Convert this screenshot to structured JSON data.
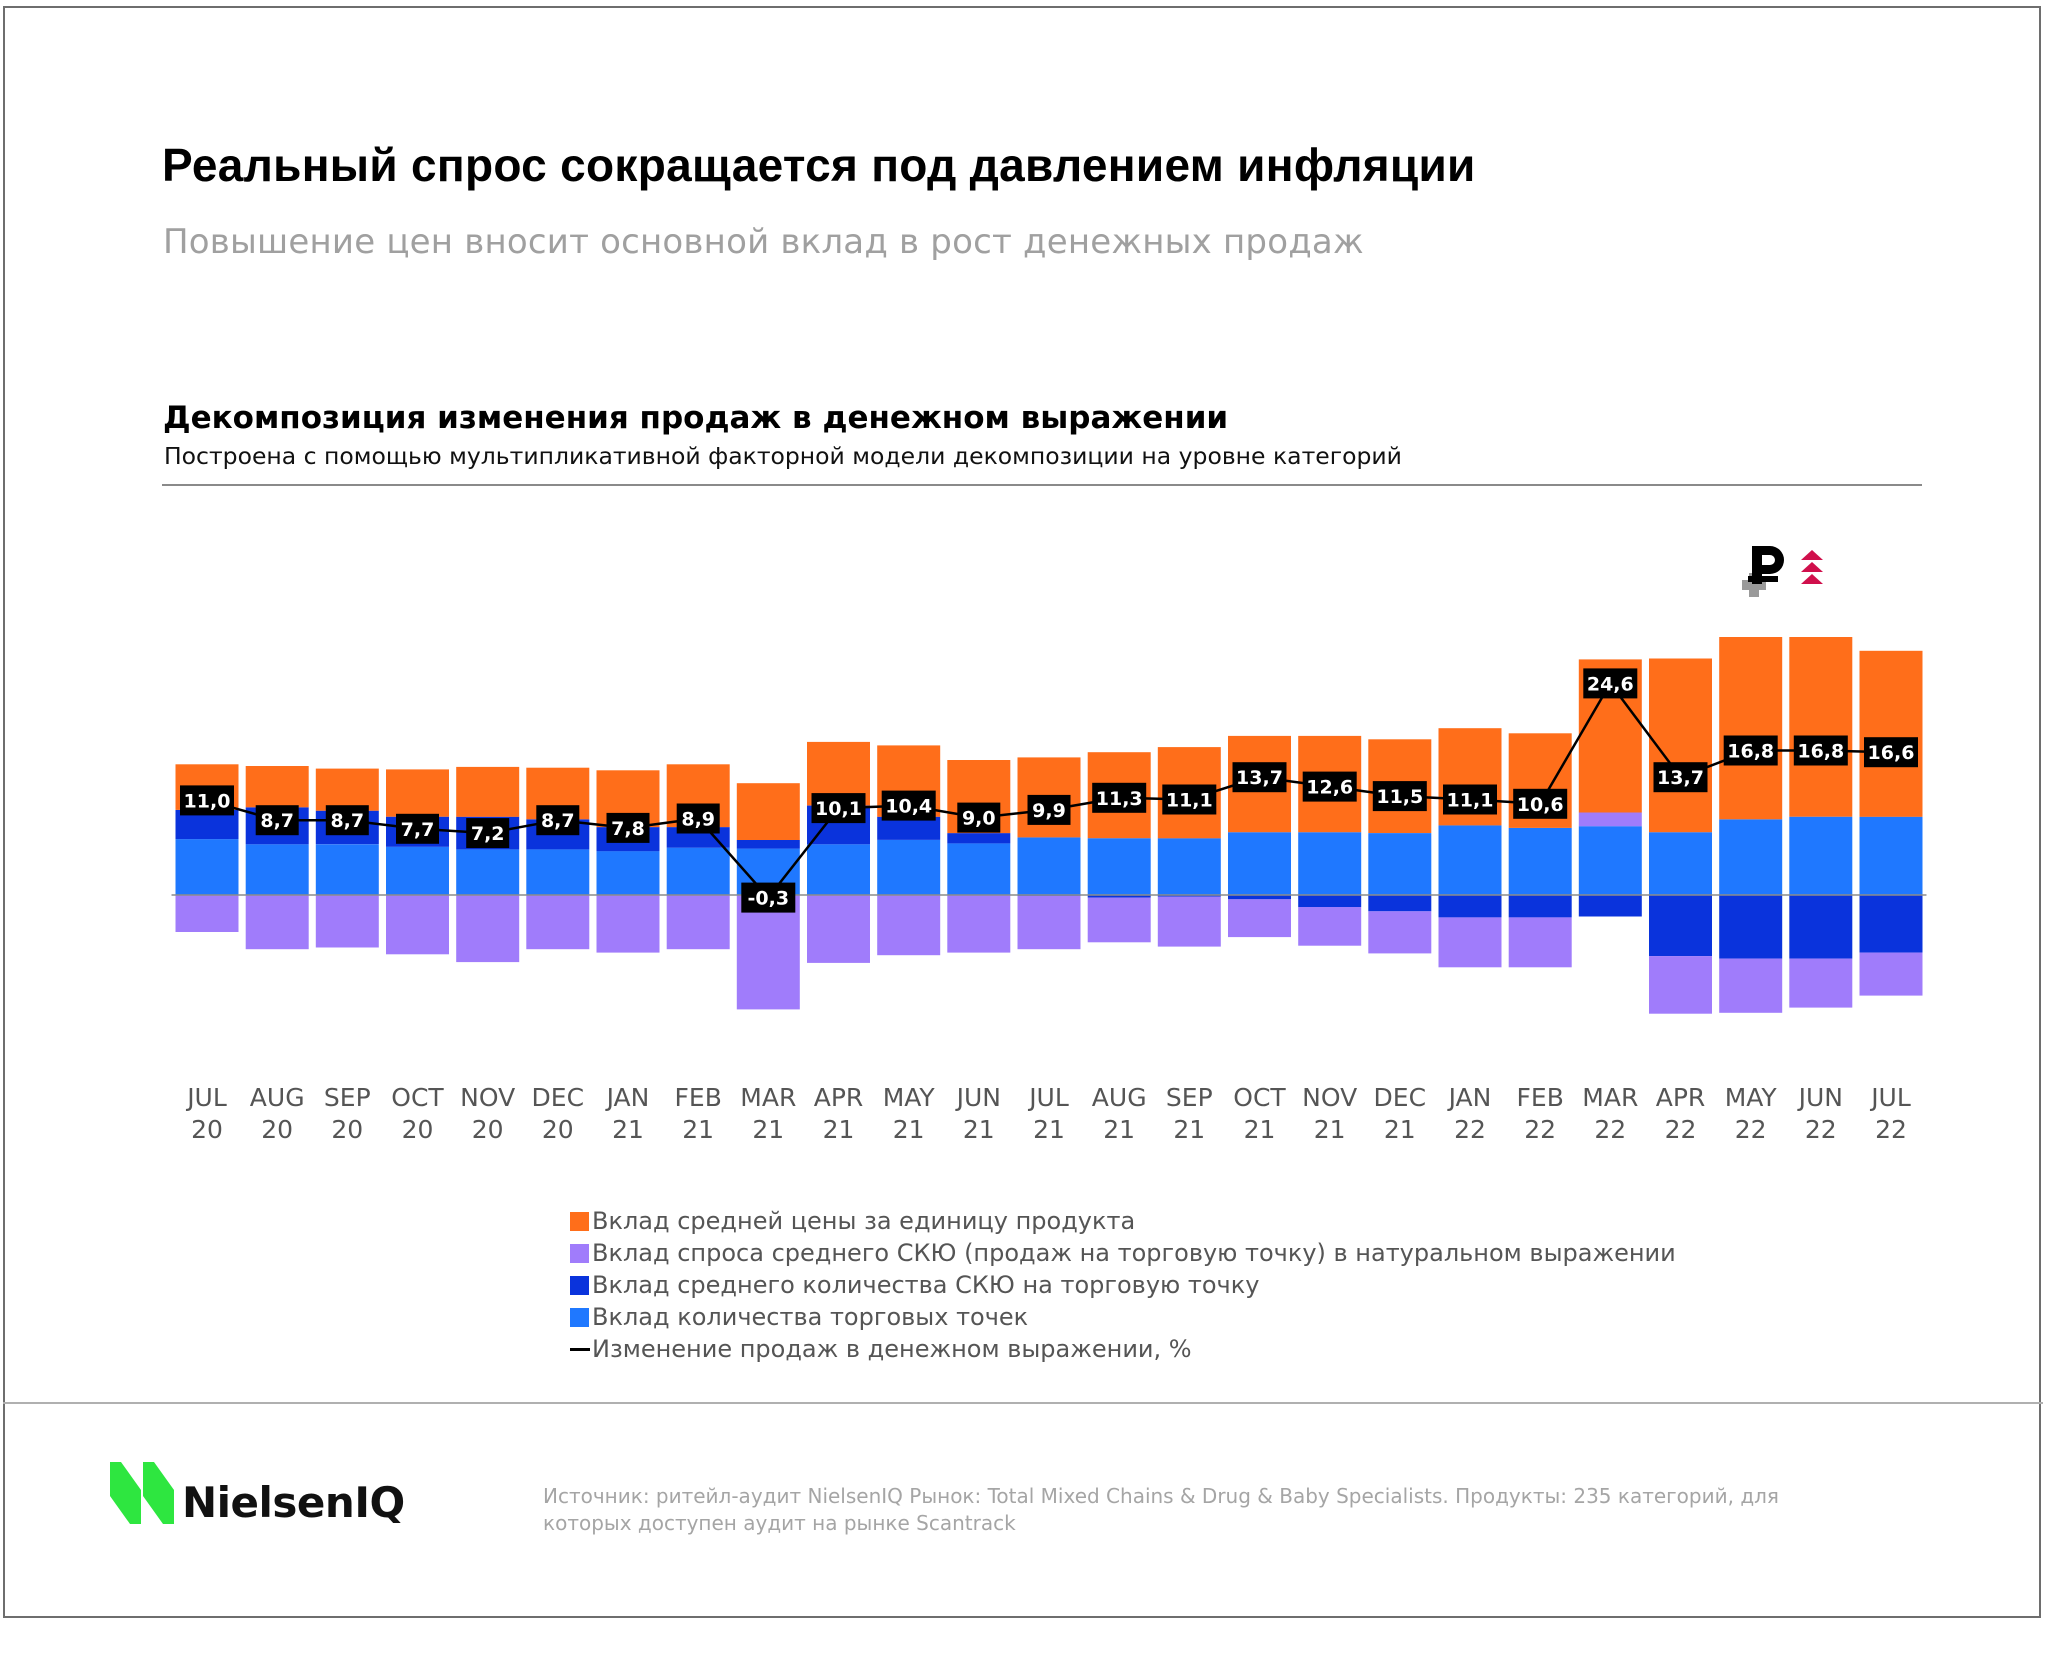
{
  "header": {
    "title": "Реальный спрос сокращается под давлением инфляции",
    "subtitle": "Повышение цен вносит основной вклад в рост денежных продаж"
  },
  "chart_header": {
    "title": "Декомпозиция изменения продаж в денежном выражении",
    "subtitle": "Построена с помощью мультипликативной факторной модели декомпозиции на уровне категорий"
  },
  "icons": {
    "ruble": "ruble-growth-icon"
  },
  "colors": {
    "price": "#FF6E1A",
    "demand": "#A07CFB",
    "sku_count": "#0A33DC",
    "stores": "#1F78FF",
    "line": "#000000",
    "label_bg": "#000000",
    "logo_green": "#2EE640",
    "ruble_arrows": "#D0104C"
  },
  "chart_data": {
    "type": "bar",
    "stacked": true,
    "title": "Декомпозиция изменения продаж в денежном выражении",
    "xlabel": "",
    "ylabel": "",
    "ylim": [
      -16,
      28
    ],
    "grid": false,
    "legend_position": "bottom",
    "categories": [
      [
        "JUL",
        "20"
      ],
      [
        "AUG",
        "20"
      ],
      [
        "SEP",
        "20"
      ],
      [
        "OCT",
        "20"
      ],
      [
        "NOV",
        "20"
      ],
      [
        "DEC",
        "20"
      ],
      [
        "JAN",
        "21"
      ],
      [
        "FEB",
        "21"
      ],
      [
        "MAR",
        "21"
      ],
      [
        "APR",
        "21"
      ],
      [
        "MAY",
        "21"
      ],
      [
        "JUN",
        "21"
      ],
      [
        "JUL",
        "21"
      ],
      [
        "AUG",
        "21"
      ],
      [
        "SEP",
        "21"
      ],
      [
        "OCT",
        "21"
      ],
      [
        "NOV",
        "21"
      ],
      [
        "DEC",
        "21"
      ],
      [
        "JAN",
        "22"
      ],
      [
        "FEB",
        "22"
      ],
      [
        "MAR",
        "22"
      ],
      [
        "APR",
        "22"
      ],
      [
        "MAY",
        "22"
      ],
      [
        "JUN",
        "22"
      ],
      [
        "JUL",
        "22"
      ]
    ],
    "series": [
      {
        "key": "stores",
        "name": "Вклад количества торговых точек",
        "values": [
          6.5,
          5.9,
          5.9,
          5.6,
          5.3,
          5.3,
          5.1,
          5.5,
          5.4,
          5.9,
          6.4,
          6.0,
          6.7,
          6.6,
          6.6,
          7.3,
          7.3,
          7.2,
          8.1,
          7.8,
          8.0,
          7.3,
          8.8,
          9.1,
          9.1
        ]
      },
      {
        "key": "sku_count",
        "name": "Вклад среднего количества СКЮ на торговую точку",
        "values": [
          3.4,
          4.3,
          3.9,
          3.5,
          3.8,
          3.5,
          2.8,
          2.4,
          1.0,
          4.5,
          2.7,
          1.2,
          -0.1,
          -0.3,
          -0.2,
          -0.5,
          -1.4,
          -1.9,
          -2.6,
          -2.6,
          -2.5,
          -7.1,
          -7.4,
          -7.4,
          -6.7
        ]
      },
      {
        "key": "demand",
        "name": "Вклад спроса среднего СКЮ (продаж на торговую точку) в натуральном выражении",
        "values": [
          -4.3,
          -6.3,
          -6.1,
          -6.9,
          -7.8,
          -6.3,
          -6.7,
          -6.3,
          -13.3,
          -7.9,
          -7.0,
          -6.7,
          -6.2,
          -5.2,
          -5.8,
          -4.4,
          -4.5,
          -4.9,
          -5.8,
          -5.8,
          1.6,
          -6.7,
          -6.3,
          -5.7,
          -5.0
        ]
      },
      {
        "key": "price",
        "name": "Вклад средней цены за единицу продукта",
        "values": [
          5.3,
          4.8,
          4.9,
          5.5,
          5.8,
          6.0,
          6.6,
          7.3,
          6.6,
          7.4,
          8.3,
          8.5,
          9.3,
          10.0,
          10.6,
          11.2,
          11.2,
          10.9,
          11.3,
          11.0,
          17.8,
          20.2,
          21.2,
          20.9,
          19.3
        ]
      }
    ],
    "line": {
      "name": "Изменение продаж в денежном выражении, %",
      "values": [
        11.0,
        8.7,
        8.7,
        7.7,
        7.2,
        8.7,
        7.8,
        8.9,
        -0.3,
        10.1,
        10.4,
        9.0,
        9.9,
        11.3,
        11.1,
        13.7,
        12.6,
        11.5,
        11.1,
        10.6,
        24.6,
        13.7,
        16.8,
        16.8,
        16.6
      ],
      "labels": [
        "11,0",
        "8,7",
        "8,7",
        "7,7",
        "7,2",
        "8,7",
        "7,8",
        "8,9",
        "-0,3",
        "10,1",
        "10,4",
        "9,0",
        "9,9",
        "11,3",
        "11,1",
        "13,7",
        "12,6",
        "11,5",
        "11,1",
        "10,6",
        "24,6",
        "13,7",
        "16,8",
        "16,8",
        "16,6"
      ]
    },
    "legend": [
      {
        "key": "price",
        "label": "Вклад средней цены за единицу продукта"
      },
      {
        "key": "demand",
        "label": "Вклад спроса среднего СКЮ (продаж на торговую точку) в натуральном выражении"
      },
      {
        "key": "sku_count",
        "label": "Вклад среднего количества СКЮ на торговую точку"
      },
      {
        "key": "stores",
        "label": "Вклад количества торговых точек"
      },
      {
        "key": "line",
        "label": "Изменение продаж в денежном выражении, %"
      }
    ]
  },
  "footer": {
    "logo_text": "NielsenIQ",
    "source": "Источник: ритейл-аудит NielsenIQ  Рынок: Total Mixed Chains & Drug & Baby Specialists. Продукты: 235 категорий, для которых доступен аудит на рынке Scantrack"
  }
}
